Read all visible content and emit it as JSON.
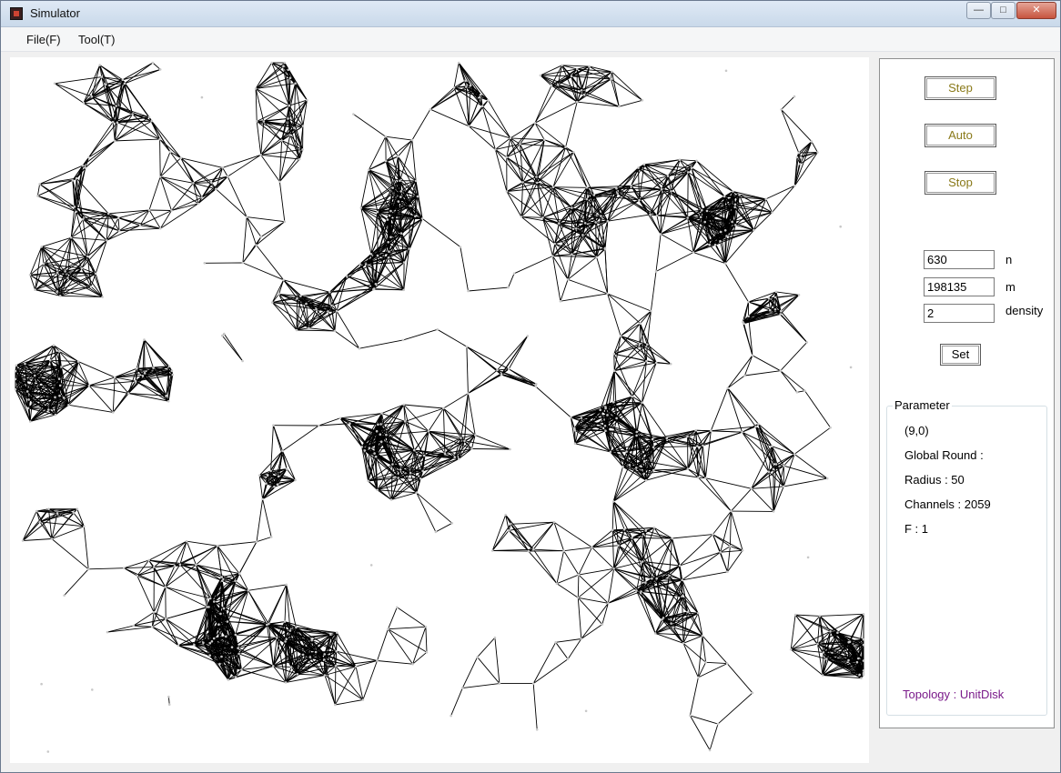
{
  "window": {
    "title": "Simulator",
    "buttons": {
      "minimize": "—",
      "maximize": "□",
      "close": "✕"
    }
  },
  "menu": [
    {
      "label": "File(F)"
    },
    {
      "label": "Tool(T)"
    }
  ],
  "controls": {
    "step": "Step",
    "auto": "Auto",
    "stop": "Stop",
    "set": "Set"
  },
  "fields": {
    "n": {
      "value": "630",
      "label": "n"
    },
    "m": {
      "value": "198135",
      "label": "m"
    },
    "density": {
      "value": "2",
      "label": "density"
    }
  },
  "parameter": {
    "legend": "Parameter",
    "position": "(9,0)",
    "global_round": "Global Round :",
    "radius": "Radius : 50",
    "channels": "Channels : 2059",
    "f": "F : 1",
    "topology": "Topology : UnitDisk"
  },
  "graph": {
    "node_count": 630,
    "radius": 50,
    "edge_color": "#000000",
    "node_color": "#c8c8c8"
  }
}
